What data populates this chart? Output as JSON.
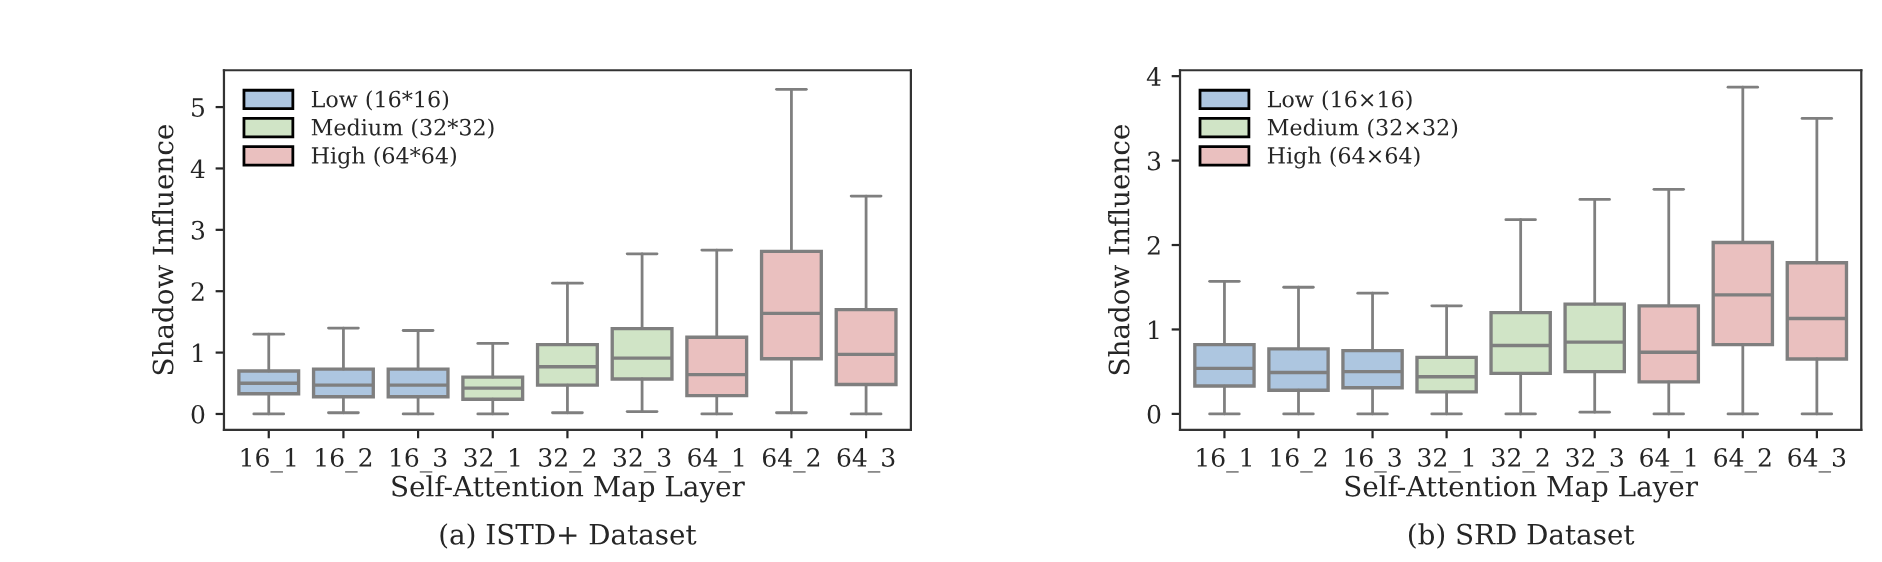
{
  "chart_data": [
    {
      "type": "box",
      "xlabel": "Self-Attention Map Layer",
      "ylabel": "Shadow Influence",
      "annotations": [
        "(a) ISTD+ Dataset"
      ],
      "categories": [
        "16_1",
        "16_2",
        "16_3",
        "32_1",
        "32_2",
        "32_3",
        "64_1",
        "64_2",
        "64_3"
      ],
      "ylim": [
        -0.26,
        5.6
      ],
      "yticks": [
        0,
        1,
        2,
        3,
        4,
        5
      ],
      "grid": false,
      "legend": "top left",
      "series": [
        {
          "name": "Low (16*16)",
          "color": "#adc6e0",
          "boxes": [
            {
              "low": 0,
              "q1": 0.33,
              "median": 0.5,
              "q3": 0.7,
              "high": 1.3
            },
            {
              "low": 0.02,
              "q1": 0.28,
              "median": 0.47,
              "q3": 0.73,
              "high": 1.4
            },
            {
              "low": 0,
              "q1": 0.28,
              "median": 0.47,
              "q3": 0.73,
              "high": 1.36
            },
            null,
            null,
            null,
            null,
            null,
            null
          ]
        },
        {
          "name": "Medium (32*32)",
          "color": "#d0e4c6",
          "boxes": [
            null,
            null,
            null,
            {
              "low": 0,
              "q1": 0.24,
              "median": 0.42,
              "q3": 0.6,
              "high": 1.15
            },
            {
              "low": 0.02,
              "q1": 0.47,
              "median": 0.77,
              "q3": 1.13,
              "high": 2.13
            },
            {
              "low": 0.04,
              "q1": 0.57,
              "median": 0.91,
              "q3": 1.39,
              "high": 2.61
            },
            null,
            null,
            null
          ]
        },
        {
          "name": "High (64*64)",
          "color": "#eac0bf",
          "boxes": [
            null,
            null,
            null,
            null,
            null,
            null,
            {
              "low": 0,
              "q1": 0.3,
              "median": 0.64,
              "q3": 1.25,
              "high": 2.67
            },
            {
              "low": 0.02,
              "q1": 0.9,
              "median": 1.64,
              "q3": 2.65,
              "high": 5.29
            },
            {
              "low": 0,
              "q1": 0.48,
              "median": 0.97,
              "q3": 1.7,
              "high": 3.55
            }
          ]
        }
      ]
    },
    {
      "type": "box",
      "xlabel": "Self-Attention Map Layer",
      "ylabel": "Shadow Influence",
      "annotations": [
        "(b) SRD Dataset"
      ],
      "categories": [
        "16_1",
        "16_2",
        "16_3",
        "32_1",
        "32_2",
        "32_3",
        "64_1",
        "64_2",
        "64_3"
      ],
      "ylim": [
        -0.19,
        4.07
      ],
      "yticks": [
        0,
        1,
        2,
        3,
        4
      ],
      "grid": false,
      "legend": "top left",
      "series": [
        {
          "name": "Low (16×16)",
          "color": "#adc6e0",
          "boxes": [
            {
              "low": 0,
              "q1": 0.33,
              "median": 0.54,
              "q3": 0.82,
              "high": 1.57
            },
            {
              "low": 0,
              "q1": 0.28,
              "median": 0.49,
              "q3": 0.77,
              "high": 1.5
            },
            {
              "low": 0,
              "q1": 0.31,
              "median": 0.5,
              "q3": 0.75,
              "high": 1.43
            },
            null,
            null,
            null,
            null,
            null,
            null
          ]
        },
        {
          "name": "Medium (32×32)",
          "color": "#d0e4c6",
          "boxes": [
            null,
            null,
            null,
            {
              "low": 0,
              "q1": 0.26,
              "median": 0.44,
              "q3": 0.67,
              "high": 1.28
            },
            {
              "low": 0,
              "q1": 0.48,
              "median": 0.81,
              "q3": 1.2,
              "high": 2.3
            },
            {
              "low": 0.02,
              "q1": 0.5,
              "median": 0.85,
              "q3": 1.3,
              "high": 2.54
            },
            null,
            null,
            null
          ]
        },
        {
          "name": "High (64×64)",
          "color": "#eac0bf",
          "boxes": [
            null,
            null,
            null,
            null,
            null,
            null,
            {
              "low": 0,
              "q1": 0.38,
              "median": 0.73,
              "q3": 1.28,
              "high": 2.66
            },
            {
              "low": 0,
              "q1": 0.82,
              "median": 1.41,
              "q3": 2.03,
              "high": 3.87
            },
            {
              "low": 0,
              "q1": 0.65,
              "median": 1.13,
              "q3": 1.79,
              "high": 3.5
            }
          ]
        }
      ]
    }
  ]
}
